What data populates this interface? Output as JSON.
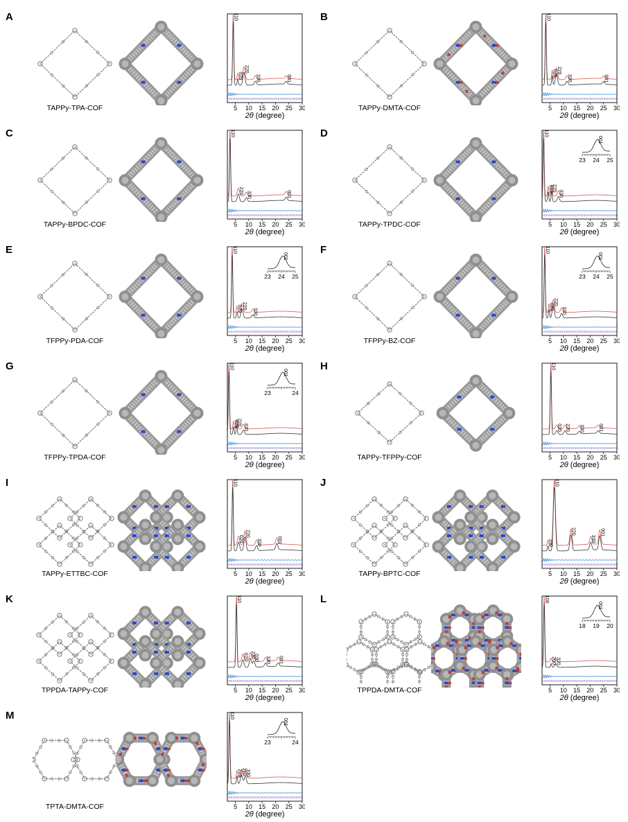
{
  "colors": {
    "experimental": "#d55757",
    "fit": "#333333",
    "difference": "#3b8fd9",
    "bragg": "#9b72cc",
    "framework": "#8a8a8a",
    "nitrogen": "#2f47c9",
    "oxygen": "#c43b30"
  },
  "panels": [
    {
      "letter": "A",
      "name": "TAPPy-TPA-COF",
      "topology": "rhombic",
      "atoms": "N",
      "peaks": [
        {
          "label": "110",
          "x": 4.2,
          "h": 1.0
        },
        {
          "label": "020",
          "x": 5.9,
          "h": 0.1
        },
        {
          "label": "220",
          "x": 8.2,
          "h": 0.2
        },
        {
          "label": "330",
          "x": 12.5,
          "h": 0.06
        },
        {
          "label": "001",
          "x": 24,
          "h": 0.04
        }
      ],
      "inset": null
    },
    {
      "letter": "B",
      "name": "TAPPy-DMTA-COF",
      "topology": "rhombic",
      "atoms": "NO",
      "peaks": [
        {
          "label": "110",
          "x": 3.4,
          "h": 1.0
        },
        {
          "label": "020",
          "x": 5.8,
          "h": 0.14
        },
        {
          "label": "220",
          "x": 7.4,
          "h": 0.18
        },
        {
          "label": "330",
          "x": 11.3,
          "h": 0.06
        },
        {
          "label": "001",
          "x": 25,
          "h": 0.04
        }
      ],
      "inset": null
    },
    {
      "letter": "C",
      "name": "TAPPy-BPDC-COF",
      "topology": "rhombic",
      "atoms": "N",
      "peaks": [
        {
          "label": "110",
          "x": 3.0,
          "h": 1.0
        },
        {
          "label": "220",
          "x": 6.1,
          "h": 0.12
        },
        {
          "label": "330",
          "x": 9.1,
          "h": 0.06
        },
        {
          "label": "001",
          "x": 24,
          "h": 0.05
        }
      ],
      "inset": null
    },
    {
      "letter": "D",
      "name": "TAPPy-TPDC-COF",
      "topology": "rhombic",
      "atoms": "N",
      "peaks": [
        {
          "label": "110",
          "x": 2.6,
          "h": 1.0
        },
        {
          "label": "020",
          "x": 4.3,
          "h": 0.15
        },
        {
          "label": "220",
          "x": 5.6,
          "h": 0.16
        },
        {
          "label": "330",
          "x": 8.1,
          "h": 0.08
        }
      ],
      "inset": {
        "ticks": [
          "23",
          "24",
          "25"
        ],
        "label": "001"
      }
    },
    {
      "letter": "E",
      "name": "TFPPy-PDA-COF",
      "topology": "rhombic",
      "atoms": "N",
      "peaks": [
        {
          "label": "110",
          "x": 3.8,
          "h": 1.0
        },
        {
          "label": "020",
          "x": 5.6,
          "h": 0.1
        },
        {
          "label": "220",
          "x": 7.5,
          "h": 0.14
        },
        {
          "label": "330",
          "x": 11.5,
          "h": 0.05
        }
      ],
      "inset": {
        "ticks": [
          "23",
          "24",
          "25"
        ],
        "label": "001"
      }
    },
    {
      "letter": "F",
      "name": "TFPPy-BZ-COF",
      "topology": "rhombic",
      "atoms": "N",
      "peaks": [
        {
          "label": "110",
          "x": 3.0,
          "h": 1.0
        },
        {
          "label": "020",
          "x": 4.6,
          "h": 0.13
        },
        {
          "label": "220",
          "x": 6.2,
          "h": 0.2
        },
        {
          "label": "330",
          "x": 9.3,
          "h": 0.07
        }
      ],
      "inset": {
        "ticks": [
          "23",
          "24",
          "25"
        ],
        "label": "001"
      }
    },
    {
      "letter": "G",
      "name": "TFPPy-TPDA-COF",
      "topology": "rhombic",
      "atoms": "N",
      "peaks": [
        {
          "label": "110",
          "x": 2.6,
          "h": 1.0
        },
        {
          "label": "020",
          "x": 4.3,
          "h": 0.12
        },
        {
          "label": "220",
          "x": 5.5,
          "h": 0.14
        },
        {
          "label": "330",
          "x": 8.0,
          "h": 0.07
        }
      ],
      "inset": {
        "ticks": [
          "23",
          "24"
        ],
        "label": "001"
      }
    },
    {
      "letter": "H",
      "name": "TAPPy-TFPPy-COF",
      "topology": "square",
      "atoms": "N",
      "peaks": [
        {
          "label": "110",
          "x": 5.3,
          "h": 1.0
        },
        {
          "label": "020",
          "x": 7.5,
          "h": 0.06
        },
        {
          "label": "220",
          "x": 10.6,
          "h": 0.06
        },
        {
          "label": "330",
          "x": 15.9,
          "h": 0.04
        },
        {
          "label": "001",
          "x": 23,
          "h": 0.04
        }
      ],
      "inset": null
    },
    {
      "letter": "I",
      "name": "TAPPy-ETTBC-COF",
      "topology": "grid",
      "atoms": "N",
      "peaks": [
        {
          "label": "110",
          "x": 4.0,
          "h": 1.0
        },
        {
          "label": "020",
          "x": 6.2,
          "h": 0.14
        },
        {
          "label": "220",
          "x": 8.6,
          "h": 0.22
        },
        {
          "label": "330",
          "x": 12.9,
          "h": 0.08
        },
        {
          "label": "001",
          "x": 20.5,
          "h": 0.1
        }
      ],
      "inset": null
    },
    {
      "letter": "J",
      "name": "TAPPy-BPTC-COF",
      "topology": "grid",
      "atoms": "N",
      "peaks": [
        {
          "label": "100",
          "x": 4.2,
          "h": 0.08
        },
        {
          "label": "110",
          "x": 6.6,
          "h": 1.0
        },
        {
          "label": "220",
          "x": 12.8,
          "h": 0.25
        },
        {
          "label": "330",
          "x": 20.2,
          "h": 0.12
        },
        {
          "label": "001",
          "x": 23.6,
          "h": 0.22
        }
      ],
      "inset": null
    },
    {
      "letter": "K",
      "name": "TPPDA-TAPPy-COF",
      "topology": "grid",
      "atoms": "N",
      "peaks": [
        {
          "label": "110",
          "x": 5.4,
          "h": 1.0
        },
        {
          "label": "020",
          "x": 7.8,
          "h": 0.12
        },
        {
          "label": "220",
          "x": 10.6,
          "h": 0.14
        },
        {
          "label": "030",
          "x": 11.9,
          "h": 0.1
        },
        {
          "label": "330",
          "x": 16.3,
          "h": 0.06
        },
        {
          "label": "001",
          "x": 21,
          "h": 0.05
        }
      ],
      "inset": null
    },
    {
      "letter": "L",
      "name": "TPPDA-DMTA-COF",
      "topology": "hexagonal",
      "atoms": "NO",
      "peaks": [
        {
          "label": "100",
          "x": 2.8,
          "h": 1.0
        },
        {
          "label": "200",
          "x": 5.4,
          "h": 0.06
        },
        {
          "label": "320",
          "x": 7.1,
          "h": 0.05
        }
      ],
      "inset": {
        "ticks": [
          "18",
          "19",
          "20"
        ],
        "label": "001"
      }
    },
    {
      "letter": "M",
      "name": "TPTA-DMTA-COF",
      "topology": "hexagonal2",
      "atoms": "NO",
      "peaks": [
        {
          "label": "110",
          "x": 2.8,
          "h": 1.0
        },
        {
          "label": "220",
          "x": 5.6,
          "h": 0.12
        },
        {
          "label": "310",
          "x": 7.3,
          "h": 0.14
        },
        {
          "label": "330",
          "x": 8.7,
          "h": 0.12
        }
      ],
      "inset": {
        "ticks": [
          "23",
          "24"
        ],
        "label": "001"
      }
    }
  ],
  "chart_data": {
    "type": "line",
    "xlabel_prefix": "2θ",
    "xlabel_suffix": " (degree)",
    "xticks": [
      "5",
      "10",
      "15",
      "20",
      "25",
      "30"
    ],
    "xlim": [
      2,
      30
    ]
  }
}
